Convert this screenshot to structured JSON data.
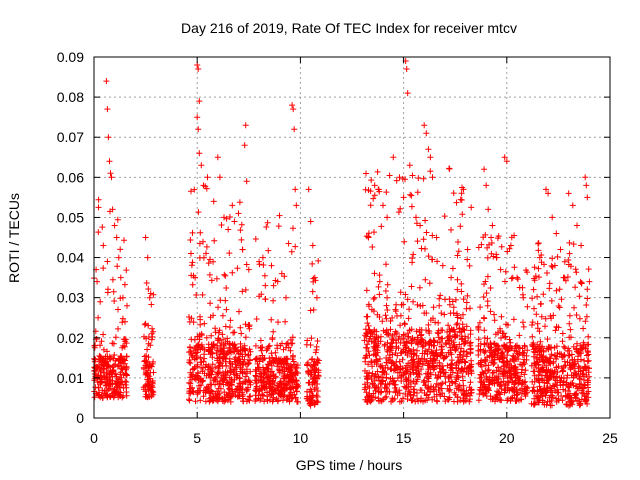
{
  "chart_data": {
    "type": "scatter",
    "title": "Day 216 of 2019, Rate Of TEC Index for receiver mtcv",
    "xlabel": "GPS time / hours",
    "ylabel": "ROTI / TECUs",
    "xlim": [
      0,
      25
    ],
    "ylim": [
      0,
      0.09
    ],
    "x_ticks": [
      0,
      5,
      10,
      15,
      20,
      25
    ],
    "y_ticks": [
      0,
      0.01,
      0.02,
      0.03,
      0.04,
      0.05,
      0.06,
      0.07,
      0.08,
      0.09
    ],
    "x_tick_labels": [
      "0",
      "5",
      "10",
      "15",
      "20",
      "25"
    ],
    "y_tick_labels": [
      "0",
      "0.01",
      "0.02",
      "0.03",
      "0.04",
      "0.05",
      "0.06",
      "0.07",
      "0.08",
      "0.09"
    ],
    "grid": true,
    "marker": "+",
    "series": [
      {
        "name": "ROTI",
        "color": "#ff0000",
        "clusters": [
          {
            "x_range": [
              0.0,
              1.6
            ],
            "typical_range": [
              0.005,
              0.02
            ],
            "max": 0.084
          },
          {
            "x_range": [
              2.4,
              2.9
            ],
            "typical_range": [
              0.005,
              0.02
            ],
            "max": 0.045
          },
          {
            "x_range": [
              4.6,
              7.6
            ],
            "typical_range": [
              0.004,
              0.025
            ],
            "max": 0.089
          },
          {
            "x_range": [
              7.8,
              9.9
            ],
            "typical_range": [
              0.004,
              0.02
            ],
            "max": 0.078
          },
          {
            "x_range": [
              10.3,
              10.9
            ],
            "typical_range": [
              0.003,
              0.02
            ],
            "max": 0.057
          },
          {
            "x_range": [
              13.1,
              18.3
            ],
            "typical_range": [
              0.004,
              0.03
            ],
            "max": 0.089
          },
          {
            "x_range": [
              18.6,
              21.0
            ],
            "typical_range": [
              0.004,
              0.025
            ],
            "max": 0.065
          },
          {
            "x_range": [
              21.2,
              24.0
            ],
            "typical_range": [
              0.003,
              0.025
            ],
            "max": 0.06
          }
        ],
        "points": [
          [
            0.1,
            0.037
          ],
          [
            0.15,
            0.034
          ],
          [
            0.2,
            0.025
          ],
          [
            0.3,
            0.029
          ],
          [
            0.45,
            0.043
          ],
          [
            0.6,
            0.084
          ],
          [
            0.65,
            0.077
          ],
          [
            0.7,
            0.07
          ],
          [
            0.75,
            0.064
          ],
          [
            0.8,
            0.061
          ],
          [
            0.85,
            0.06
          ],
          [
            0.9,
            0.052
          ],
          [
            1.0,
            0.048
          ],
          [
            1.1,
            0.045
          ],
          [
            1.2,
            0.04
          ],
          [
            1.3,
            0.035
          ],
          [
            1.4,
            0.03
          ],
          [
            1.5,
            0.024
          ],
          [
            1.6,
            0.028
          ],
          [
            2.5,
            0.045
          ],
          [
            2.6,
            0.04
          ],
          [
            2.7,
            0.03
          ],
          [
            2.8,
            0.021
          ],
          [
            4.7,
            0.041
          ],
          [
            4.9,
            0.035
          ],
          [
            5.0,
            0.088
          ],
          [
            5.05,
            0.087
          ],
          [
            5.1,
            0.079
          ],
          [
            5.0,
            0.075
          ],
          [
            5.05,
            0.072
          ],
          [
            5.1,
            0.066
          ],
          [
            5.2,
            0.063
          ],
          [
            5.5,
            0.06
          ],
          [
            5.8,
            0.054
          ],
          [
            6.0,
            0.065
          ],
          [
            6.1,
            0.06
          ],
          [
            6.3,
            0.05
          ],
          [
            6.5,
            0.047
          ],
          [
            6.7,
            0.053
          ],
          [
            6.8,
            0.049
          ],
          [
            7.0,
            0.051
          ],
          [
            7.2,
            0.042
          ],
          [
            7.3,
            0.068
          ],
          [
            7.35,
            0.073
          ],
          [
            7.4,
            0.059
          ],
          [
            7.5,
            0.037
          ],
          [
            8.0,
            0.039
          ],
          [
            8.3,
            0.033
          ],
          [
            8.6,
            0.038
          ],
          [
            8.9,
            0.034
          ],
          [
            9.1,
            0.036
          ],
          [
            9.3,
            0.03
          ],
          [
            9.6,
            0.078
          ],
          [
            9.65,
            0.077
          ],
          [
            9.7,
            0.072
          ],
          [
            9.75,
            0.057
          ],
          [
            9.8,
            0.053
          ],
          [
            10.4,
            0.057
          ],
          [
            10.5,
            0.049
          ],
          [
            10.6,
            0.043
          ],
          [
            10.7,
            0.035
          ],
          [
            10.8,
            0.03
          ],
          [
            13.3,
            0.045
          ],
          [
            13.6,
            0.058
          ],
          [
            13.8,
            0.057
          ],
          [
            14.0,
            0.053
          ],
          [
            14.2,
            0.05
          ],
          [
            14.5,
            0.065
          ],
          [
            14.8,
            0.06
          ],
          [
            15.0,
            0.055
          ],
          [
            15.1,
            0.089
          ],
          [
            15.15,
            0.087
          ],
          [
            15.2,
            0.081
          ],
          [
            15.3,
            0.063
          ],
          [
            15.6,
            0.05
          ],
          [
            15.8,
            0.048
          ],
          [
            16.0,
            0.073
          ],
          [
            16.1,
            0.071
          ],
          [
            16.2,
            0.067
          ],
          [
            16.3,
            0.065
          ],
          [
            16.4,
            0.06
          ],
          [
            16.6,
            0.045
          ],
          [
            16.9,
            0.038
          ],
          [
            17.3,
            0.035
          ],
          [
            17.6,
            0.032
          ],
          [
            17.9,
            0.057
          ],
          [
            18.1,
            0.042
          ],
          [
            18.9,
            0.062
          ],
          [
            19.0,
            0.058
          ],
          [
            19.1,
            0.052
          ],
          [
            19.3,
            0.048
          ],
          [
            19.5,
            0.04
          ],
          [
            19.7,
            0.037
          ],
          [
            19.9,
            0.065
          ],
          [
            20.0,
            0.064
          ],
          [
            20.2,
            0.043
          ],
          [
            20.5,
            0.035
          ],
          [
            20.8,
            0.03
          ],
          [
            21.3,
            0.032
          ],
          [
            21.6,
            0.04
          ],
          [
            21.9,
            0.057
          ],
          [
            22.0,
            0.056
          ],
          [
            22.2,
            0.05
          ],
          [
            22.4,
            0.046
          ],
          [
            22.6,
            0.042
          ],
          [
            22.8,
            0.035
          ],
          [
            23.0,
            0.056
          ],
          [
            23.2,
            0.053
          ],
          [
            23.4,
            0.048
          ],
          [
            23.6,
            0.043
          ],
          [
            23.8,
            0.06
          ],
          [
            23.85,
            0.058
          ],
          [
            23.9,
            0.055
          ],
          [
            24.0,
            0.034
          ]
        ]
      }
    ]
  }
}
